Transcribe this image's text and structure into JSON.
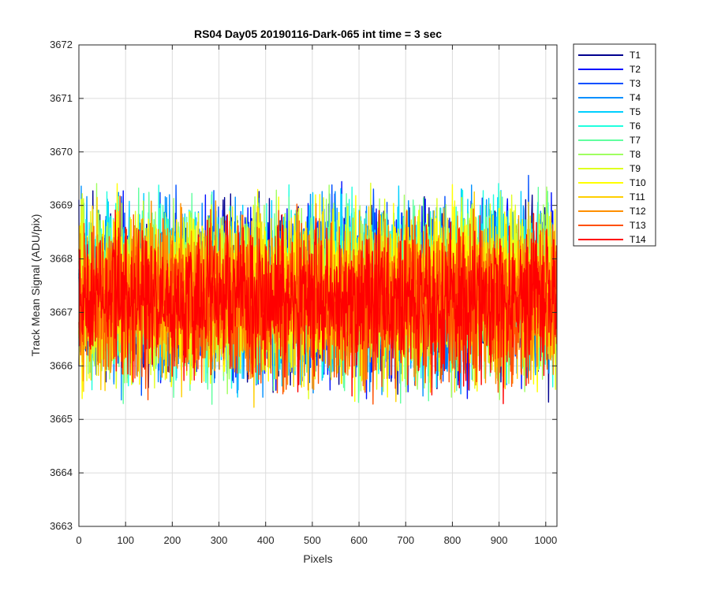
{
  "chart_data": {
    "type": "line",
    "title": "RS04 Day05 20190116-Dark-065 int time = 3 sec",
    "xlabel": "Pixels",
    "ylabel": "Track Mean Signal (ADU/pix)",
    "xlim": [
      0,
      1024
    ],
    "ylim": [
      3663,
      3672
    ],
    "x_ticks": [
      0,
      100,
      200,
      300,
      400,
      500,
      600,
      700,
      800,
      900,
      1000
    ],
    "y_ticks": [
      3663,
      3664,
      3665,
      3666,
      3667,
      3668,
      3669,
      3670,
      3671,
      3672
    ],
    "grid": true,
    "legend_position": "outside-top-right",
    "x": {
      "start": 0,
      "end": 1023,
      "step": 1
    },
    "series": [
      {
        "name": "T1",
        "color": "#00008F",
        "mean": 3667.4,
        "spread": 1.2
      },
      {
        "name": "T2",
        "color": "#0010FF",
        "mean": 3667.4,
        "spread": 1.2
      },
      {
        "name": "T3",
        "color": "#0050FF",
        "mean": 3667.4,
        "spread": 1.2
      },
      {
        "name": "T4",
        "color": "#0090FF",
        "mean": 3667.4,
        "spread": 1.2
      },
      {
        "name": "T5",
        "color": "#00D0FF",
        "mean": 3667.4,
        "spread": 1.2
      },
      {
        "name": "T6",
        "color": "#20FFDF",
        "mean": 3667.4,
        "spread": 1.2
      },
      {
        "name": "T7",
        "color": "#60FF9F",
        "mean": 3667.4,
        "spread": 1.2
      },
      {
        "name": "T8",
        "color": "#9FFF60",
        "mean": 3667.4,
        "spread": 1.2
      },
      {
        "name": "T9",
        "color": "#DFFF20",
        "mean": 3667.4,
        "spread": 1.2
      },
      {
        "name": "T10",
        "color": "#FFFF00",
        "mean": 3667.4,
        "spread": 1.2
      },
      {
        "name": "T11",
        "color": "#FFCF00",
        "mean": 3667.3,
        "spread": 1.15
      },
      {
        "name": "T12",
        "color": "#FF8F00",
        "mean": 3667.3,
        "spread": 1.15
      },
      {
        "name": "T13",
        "color": "#FF5000",
        "mean": 3667.2,
        "spread": 1.1
      },
      {
        "name": "T14",
        "color": "#FF0000",
        "mean": 3667.2,
        "spread": 1.05
      }
    ]
  }
}
